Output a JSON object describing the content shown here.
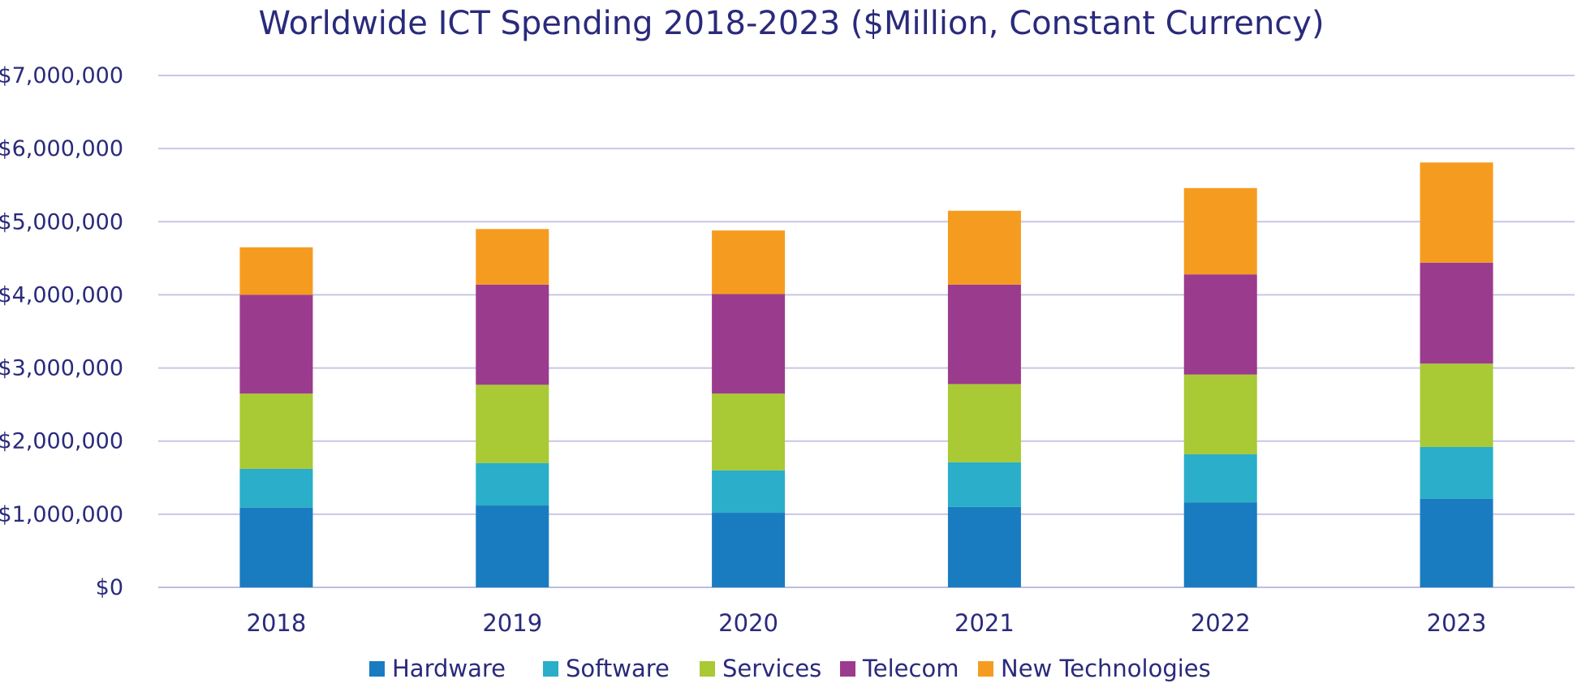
{
  "chart_data": {
    "type": "bar",
    "stacked": true,
    "title": "Worldwide ICT Spending 2018-2023 ($Million, Constant Currency)",
    "xlabel": "",
    "ylabel": "",
    "ylim": [
      0,
      7000000
    ],
    "ytick_values": [
      0,
      1000000,
      2000000,
      3000000,
      4000000,
      5000000,
      6000000,
      7000000
    ],
    "ytick_labels": [
      "$0",
      "$1,000,000",
      "$2,000,000",
      "$3,000,000",
      "$4,000,000",
      "$5,000,000",
      "$6,000,000",
      "$7,000,000"
    ],
    "grid": true,
    "legend_position": "bottom",
    "categories": [
      "2018",
      "2019",
      "2020",
      "2021",
      "2022",
      "2023"
    ],
    "series": [
      {
        "name": "Hardware",
        "color": "#1a7cc0",
        "values": [
          1090000,
          1120000,
          1020000,
          1100000,
          1160000,
          1210000
        ]
      },
      {
        "name": "Software",
        "color": "#2aaec9",
        "values": [
          530000,
          580000,
          580000,
          610000,
          660000,
          710000
        ]
      },
      {
        "name": "Services",
        "color": "#a9c935",
        "values": [
          1030000,
          1070000,
          1050000,
          1070000,
          1090000,
          1140000
        ]
      },
      {
        "name": "Telecom",
        "color": "#9b3b8e",
        "values": [
          1350000,
          1370000,
          1360000,
          1360000,
          1370000,
          1380000
        ]
      },
      {
        "name": "New Technologies",
        "color": "#f59c20",
        "values": [
          650000,
          760000,
          870000,
          1010000,
          1180000,
          1370000
        ]
      }
    ]
  }
}
